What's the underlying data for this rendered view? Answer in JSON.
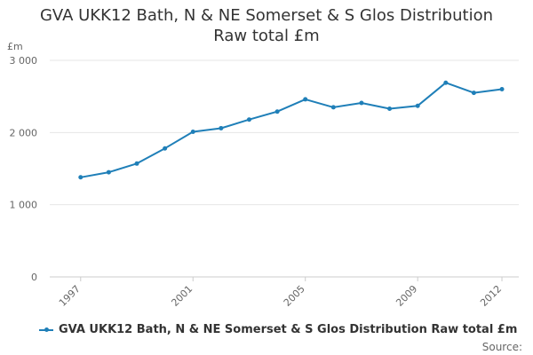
{
  "chart_data": {
    "type": "line",
    "title": [
      "GVA UKK12 Bath, N & NE Somerset & S Glos Distribution",
      "Raw total £m"
    ],
    "ylabel": "£m",
    "xlabel": "",
    "ylim": [
      0,
      3000
    ],
    "xlim": [
      1997,
      2012
    ],
    "y_ticks": [
      0,
      1000,
      2000,
      3000
    ],
    "y_tick_labels": [
      "0",
      "1 000",
      "2 000",
      "3 000"
    ],
    "x_ticks": [
      1997,
      2001,
      2005,
      2009,
      2012
    ],
    "x_tick_labels": [
      "1997",
      "2001",
      "2005",
      "2009",
      "2012"
    ],
    "grid": true,
    "legend_position": "bottom",
    "series": [
      {
        "name": "GVA UKK12 Bath, N & NE Somerset & S Glos Distribution Raw total £m",
        "color": "#1f7fb8",
        "x": [
          1997,
          1998,
          1999,
          2000,
          2001,
          2002,
          2003,
          2004,
          2005,
          2006,
          2007,
          2008,
          2009,
          2010,
          2011,
          2012
        ],
        "values": [
          1380,
          1450,
          1570,
          1780,
          2010,
          2060,
          2180,
          2290,
          2460,
          2350,
          2410,
          2330,
          2370,
          2690,
          2550,
          2600
        ]
      }
    ]
  },
  "source_label": "Source:"
}
